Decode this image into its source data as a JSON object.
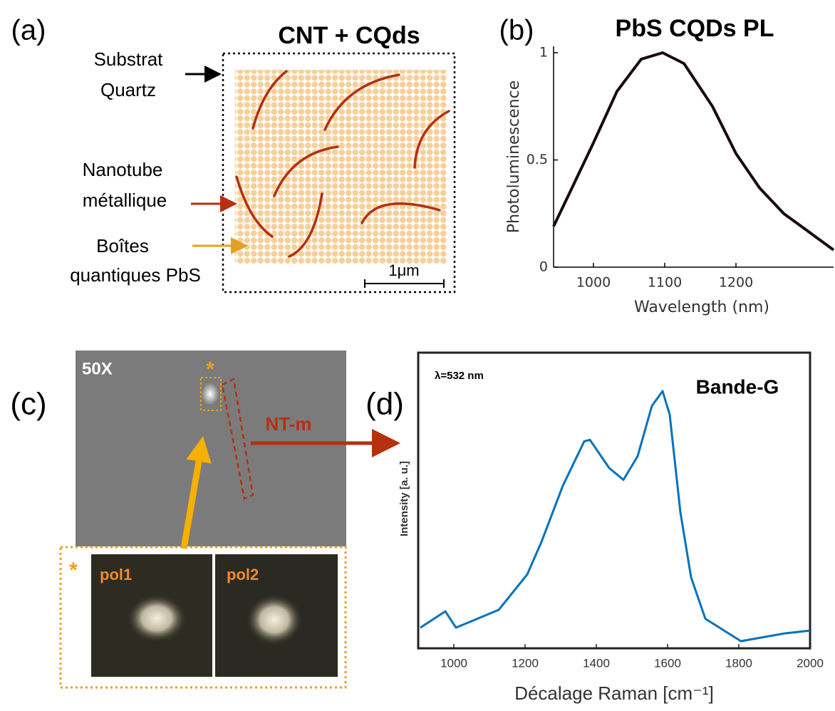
{
  "panel_a": {
    "label": "(a)",
    "title": "CNT + CQds",
    "substrate": [
      "Substrat",
      "Quartz"
    ],
    "nanotube": [
      "Nanotube",
      "métallique"
    ],
    "dots": [
      "Boîtes",
      "quantiques PbS"
    ],
    "scale": "1μm"
  },
  "panel_c": {
    "label": "(c)",
    "magnification": "50X",
    "marker": "*",
    "tube": "NT-m",
    "inset": [
      "pol1",
      "pol2"
    ]
  },
  "chart_data": [
    {
      "type": "line",
      "panel_label": "(b)",
      "title": "PbS CQDs PL",
      "x_label": "Wavelength (nm)",
      "y_label": "Photoluminescence",
      "x": [
        944,
        967,
        1000,
        1033,
        1067,
        1097,
        1127,
        1167,
        1200,
        1233,
        1267,
        1300,
        1337
      ],
      "values": [
        0.19,
        0.35,
        0.58,
        0.82,
        0.97,
        1.0,
        0.95,
        0.75,
        0.53,
        0.37,
        0.25,
        0.17,
        0.08
      ],
      "color": "#1a0a0a",
      "xlim": [
        944,
        1337
      ],
      "ylim": [
        0,
        1.03
      ],
      "xticks": [
        1000,
        1100,
        1200
      ],
      "yticks": [
        0,
        0.5,
        1
      ]
    },
    {
      "type": "line",
      "panel_label": "(d)",
      "x_label": "Décalage Raman [cm⁻¹]",
      "y_label": "Intensity [a. u.]",
      "annotations": [
        "λ=532 nm",
        "Bande-G"
      ],
      "x": [
        906,
        976,
        1006,
        1126,
        1206,
        1246,
        1306,
        1366,
        1382,
        1436,
        1476,
        1516,
        1556,
        1586,
        1606,
        1636,
        1666,
        1706,
        1806,
        1926,
        2000
      ],
      "values": [
        7,
        12.5,
        7,
        13,
        25,
        36,
        55,
        70,
        70.5,
        61,
        57,
        65,
        82,
        87,
        79,
        46,
        24,
        10,
        2.4,
        5,
        6
      ],
      "color": "#0072bd",
      "xlim": [
        900,
        2000
      ],
      "ylim": [
        0,
        100
      ],
      "xticks": [
        1000,
        1200,
        1400,
        1600,
        1800,
        2000
      ]
    }
  ]
}
